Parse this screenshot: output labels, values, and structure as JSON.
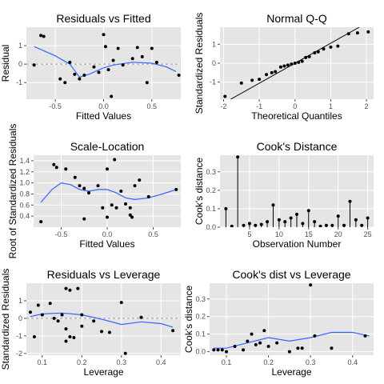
{
  "chart_data": [
    {
      "type": "scatter",
      "title": "Residuals vs Fitted",
      "xlabel": "Fitted Values",
      "ylabel": "Residual",
      "xlim": [
        -0.8,
        0.8
      ],
      "ylim": [
        -1.9,
        2.0
      ],
      "xticks": [
        -0.5,
        0.0,
        0.5
      ],
      "xticklabels": [
        "-0.5",
        "0.0",
        "0.5"
      ],
      "yticks": [
        -1,
        0,
        1
      ],
      "yticklabels": [
        "-1",
        "0",
        "1"
      ],
      "hline": 0,
      "smooth": [
        [
          -0.72,
          0.95
        ],
        [
          -0.5,
          0.45
        ],
        [
          -0.35,
          0.0
        ],
        [
          -0.25,
          -0.7
        ],
        [
          -0.15,
          -0.55
        ],
        [
          0.0,
          -0.2
        ],
        [
          0.1,
          -0.05
        ],
        [
          0.3,
          0.1
        ],
        [
          0.5,
          0.05
        ],
        [
          0.65,
          -0.15
        ],
        [
          0.75,
          -0.4
        ]
      ],
      "points": [
        [
          -0.65,
          1.55
        ],
        [
          -0.62,
          1.5
        ],
        [
          -0.72,
          -0.05
        ],
        [
          -0.45,
          -0.8
        ],
        [
          -0.4,
          -1.0
        ],
        [
          -0.35,
          0.1
        ],
        [
          -0.3,
          -0.55
        ],
        [
          -0.25,
          -0.8
        ],
        [
          -0.2,
          -0.6
        ],
        [
          -0.1,
          -0.15
        ],
        [
          -0.05,
          -0.45
        ],
        [
          0.0,
          1.6
        ],
        [
          0.02,
          0.95
        ],
        [
          0.05,
          -0.3
        ],
        [
          0.08,
          -1.75
        ],
        [
          0.1,
          0.2
        ],
        [
          0.15,
          0.85
        ],
        [
          0.2,
          -0.05
        ],
        [
          0.3,
          0.3
        ],
        [
          0.35,
          0.9
        ],
        [
          0.4,
          0.4
        ],
        [
          0.45,
          -1.0
        ],
        [
          0.5,
          0.85
        ],
        [
          0.55,
          0.1
        ],
        [
          0.78,
          -0.6
        ]
      ]
    },
    {
      "type": "scatter",
      "title": "Normal Q-Q",
      "xlabel": "Theoretical Quantiles",
      "ylabel": "Standardized Residuals",
      "xlim": [
        -2.1,
        2.2
      ],
      "ylim": [
        -1.9,
        1.9
      ],
      "xticks": [
        -2,
        -1,
        0,
        1,
        2
      ],
      "xticklabels": [
        "-2",
        "-1",
        "0",
        "1",
        "2"
      ],
      "yticks": [
        -1,
        0,
        1
      ],
      "yticklabels": [
        "-1",
        "0",
        "1"
      ],
      "refline": [
        [
          -1.8,
          -1.9
        ],
        [
          1.8,
          1.9
        ]
      ],
      "points": [
        [
          -1.96,
          -1.75
        ],
        [
          -1.5,
          -1.05
        ],
        [
          -1.2,
          -0.9
        ],
        [
          -1.0,
          -0.85
        ],
        [
          -0.8,
          -0.6
        ],
        [
          -0.65,
          -0.5
        ],
        [
          -0.55,
          -0.45
        ],
        [
          -0.4,
          -0.2
        ],
        [
          -0.3,
          -0.15
        ],
        [
          -0.2,
          -0.1
        ],
        [
          -0.1,
          -0.05
        ],
        [
          0.0,
          0.0
        ],
        [
          0.1,
          0.05
        ],
        [
          0.2,
          0.1
        ],
        [
          0.3,
          0.3
        ],
        [
          0.4,
          0.35
        ],
        [
          0.55,
          0.55
        ],
        [
          0.65,
          0.6
        ],
        [
          0.8,
          0.75
        ],
        [
          1.0,
          0.85
        ],
        [
          1.2,
          0.9
        ],
        [
          1.5,
          1.55
        ],
        [
          1.75,
          1.6
        ],
        [
          2.05,
          1.65
        ]
      ]
    },
    {
      "type": "scatter",
      "title": "Scale-Location",
      "xlabel": "Fitted Values",
      "ylabel": "Root of Standardized Residuals",
      "xlim": [
        -0.8,
        0.8
      ],
      "ylim": [
        0.2,
        1.5
      ],
      "xticks": [
        -0.5,
        0.0,
        0.5
      ],
      "xticklabels": [
        "-0.5",
        "0.0",
        "0.5"
      ],
      "yticks": [
        0.4,
        0.6,
        0.8,
        1.0,
        1.2,
        1.4
      ],
      "yticklabels": [
        "0.4",
        "0.6",
        "0.8",
        "1.0",
        "1.2",
        "1.4"
      ],
      "smooth": [
        [
          -0.72,
          0.65
        ],
        [
          -0.6,
          0.88
        ],
        [
          -0.5,
          1.0
        ],
        [
          -0.4,
          0.97
        ],
        [
          -0.3,
          0.88
        ],
        [
          -0.2,
          0.85
        ],
        [
          -0.1,
          0.88
        ],
        [
          0.0,
          0.88
        ],
        [
          0.1,
          0.82
        ],
        [
          0.2,
          0.73
        ],
        [
          0.3,
          0.7
        ],
        [
          0.45,
          0.73
        ],
        [
          0.6,
          0.8
        ],
        [
          0.75,
          0.88
        ]
      ],
      "points": [
        [
          -0.72,
          0.3
        ],
        [
          -0.58,
          1.33
        ],
        [
          -0.55,
          1.28
        ],
        [
          -0.45,
          1.25
        ],
        [
          -0.35,
          1.1
        ],
        [
          -0.3,
          0.95
        ],
        [
          -0.25,
          0.9
        ],
        [
          -0.25,
          0.35
        ],
        [
          -0.2,
          0.82
        ],
        [
          -0.1,
          0.95
        ],
        [
          -0.05,
          0.55
        ],
        [
          0.0,
          1.25
        ],
        [
          0.0,
          0.38
        ],
        [
          0.05,
          0.6
        ],
        [
          0.08,
          1.42
        ],
        [
          0.1,
          0.55
        ],
        [
          0.15,
          0.85
        ],
        [
          0.2,
          0.62
        ],
        [
          0.25,
          0.55
        ],
        [
          0.25,
          0.42
        ],
        [
          0.27,
          0.38
        ],
        [
          0.3,
          0.95
        ],
        [
          0.35,
          1.05
        ],
        [
          0.45,
          0.75
        ],
        [
          0.75,
          0.88
        ]
      ]
    },
    {
      "type": "bar",
      "title": "Cook's Distance",
      "xlabel": "Observation Number",
      "ylabel": "Cook's distance",
      "xlim": [
        0,
        26
      ],
      "ylim": [
        0,
        0.39
      ],
      "xticks": [
        5,
        10,
        15,
        20,
        25
      ],
      "xticklabels": [
        "5",
        "10",
        "15",
        "20",
        "25"
      ],
      "yticks": [
        0.0,
        0.1,
        0.2,
        0.3
      ],
      "yticklabels": [
        "0.0",
        "0.1",
        "0.2",
        "0.3"
      ],
      "x": [
        1,
        2,
        3,
        4,
        5,
        6,
        7,
        8,
        9,
        10,
        11,
        12,
        13,
        14,
        15,
        16,
        17,
        18,
        19,
        20,
        21,
        22,
        23,
        24,
        25
      ],
      "values": [
        0.1,
        0.005,
        0.38,
        0.01,
        0.02,
        0.01,
        0.015,
        0.03,
        0.12,
        0.04,
        0.03,
        0.05,
        0.07,
        0.02,
        0.09,
        0.03,
        0.005,
        0.01,
        0.01,
        0.06,
        0.01,
        0.14,
        0.04,
        0.01,
        0.05
      ]
    },
    {
      "type": "scatter",
      "title": "Residuals vs Leverage",
      "xlabel": "Leverage",
      "ylabel": "Standardized Residuals",
      "xlim": [
        0.06,
        0.45
      ],
      "ylim": [
        -2.1,
        2.0
      ],
      "xticks": [
        0.1,
        0.2,
        0.3,
        0.4
      ],
      "xticklabels": [
        "0.1",
        "0.2",
        "0.3",
        "0.4"
      ],
      "yticks": [
        -2,
        -1,
        0,
        1
      ],
      "yticklabels": [
        "-2",
        "-1",
        "0",
        "1"
      ],
      "hline": 0,
      "smooth": [
        [
          0.07,
          0.1
        ],
        [
          0.1,
          0.25
        ],
        [
          0.15,
          0.3
        ],
        [
          0.2,
          0.2
        ],
        [
          0.25,
          -0.05
        ],
        [
          0.3,
          -0.35
        ],
        [
          0.35,
          -0.2
        ],
        [
          0.4,
          -0.3
        ],
        [
          0.43,
          -0.5
        ]
      ],
      "points": [
        [
          0.07,
          0.35
        ],
        [
          0.08,
          -1.05
        ],
        [
          0.09,
          0.75
        ],
        [
          0.1,
          0.2
        ],
        [
          0.12,
          0.85
        ],
        [
          0.13,
          0.0
        ],
        [
          0.14,
          -0.15
        ],
        [
          0.15,
          0.2
        ],
        [
          0.16,
          -0.6
        ],
        [
          0.16,
          -1.3
        ],
        [
          0.16,
          1.7
        ],
        [
          0.17,
          1.6
        ],
        [
          0.17,
          -1.05
        ],
        [
          0.18,
          -1.1
        ],
        [
          0.19,
          1.7
        ],
        [
          0.2,
          0.2
        ],
        [
          0.2,
          -0.45
        ],
        [
          0.23,
          -0.15
        ],
        [
          0.25,
          -0.75
        ],
        [
          0.27,
          -0.8
        ],
        [
          0.3,
          0.9
        ],
        [
          0.31,
          -2.0
        ],
        [
          0.35,
          0.05
        ],
        [
          0.43,
          -0.7
        ]
      ]
    },
    {
      "type": "scatter",
      "title": "Cook's dist vs Leverage",
      "xlabel": "Leverage",
      "ylabel": "Cook's distance",
      "xlim": [
        0.06,
        0.45
      ],
      "ylim": [
        -0.02,
        0.39
      ],
      "xticks": [
        0.1,
        0.2,
        0.3,
        0.4
      ],
      "xticklabels": [
        "0.1",
        "0.2",
        "0.3",
        "0.4"
      ],
      "yticks": [
        0.0,
        0.1,
        0.2,
        0.3
      ],
      "yticklabels": [
        "0.0",
        "0.1",
        "0.2",
        "0.3"
      ],
      "smooth": [
        [
          0.07,
          0.02
        ],
        [
          0.1,
          0.02
        ],
        [
          0.15,
          0.05
        ],
        [
          0.2,
          0.08
        ],
        [
          0.25,
          0.06
        ],
        [
          0.3,
          0.08
        ],
        [
          0.35,
          0.11
        ],
        [
          0.4,
          0.11
        ],
        [
          0.44,
          0.09
        ]
      ],
      "points": [
        [
          0.07,
          0.01
        ],
        [
          0.08,
          0.01
        ],
        [
          0.09,
          0.01
        ],
        [
          0.1,
          0.0
        ],
        [
          0.12,
          0.03
        ],
        [
          0.14,
          0.01
        ],
        [
          0.15,
          0.06
        ],
        [
          0.16,
          0.1
        ],
        [
          0.17,
          0.04
        ],
        [
          0.18,
          0.05
        ],
        [
          0.19,
          0.12
        ],
        [
          0.2,
          0.03
        ],
        [
          0.22,
          0.05
        ],
        [
          0.25,
          0.0
        ],
        [
          0.27,
          0.02
        ],
        [
          0.28,
          0.02
        ],
        [
          0.3,
          0.38
        ],
        [
          0.31,
          0.09
        ],
        [
          0.35,
          0.02
        ],
        [
          0.43,
          0.09
        ]
      ]
    }
  ],
  "colors": {
    "panel": "#e5e5e5",
    "grid": "#ffffff",
    "point": "#000000",
    "smooth": "#3366ff",
    "zero": "#999999",
    "tick": "#4d4d4d"
  }
}
